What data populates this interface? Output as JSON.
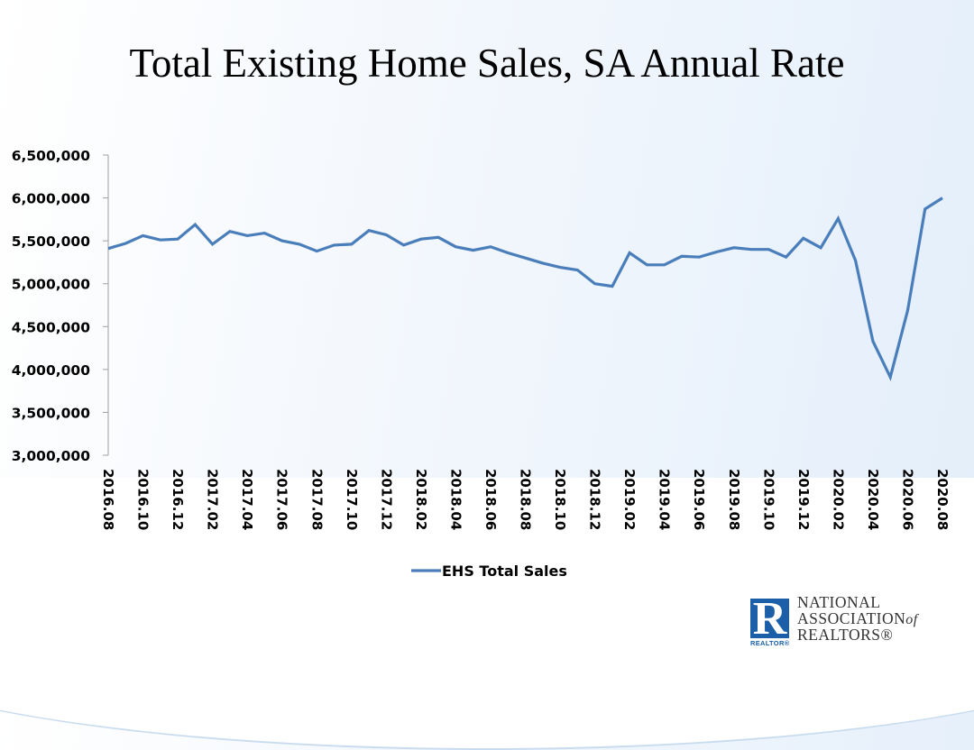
{
  "slide": {
    "title": "Total Existing Home Sales, SA Annual Rate"
  },
  "logo": {
    "mark_letter": "R",
    "mark_caption": "REALTOR®",
    "line1": "NATIONAL",
    "line2": "ASSOCIATION",
    "line2_suffix": "of",
    "line3": "REALTORS®"
  },
  "colors": {
    "series": "#4a7ebb",
    "axis": "#a0a0a0"
  },
  "chart_data": {
    "type": "line",
    "title": "Total Existing Home Sales, SA Annual Rate",
    "xlabel": "",
    "ylabel": "",
    "ylim": [
      3000000,
      6500000
    ],
    "yticks": [
      3000000,
      3500000,
      4000000,
      4500000,
      5000000,
      5500000,
      6000000,
      6500000
    ],
    "ytick_labels": [
      "3,000,000",
      "3,500,000",
      "4,000,000",
      "4,500,000",
      "5,000,000",
      "5,500,000",
      "6,000,000",
      "6,500,000"
    ],
    "x": [
      "2016.08",
      "2016.09",
      "2016.10",
      "2016.11",
      "2016.12",
      "2017.01",
      "2017.02",
      "2017.03",
      "2017.04",
      "2017.05",
      "2017.06",
      "2017.07",
      "2017.08",
      "2017.09",
      "2017.10",
      "2017.11",
      "2017.12",
      "2018.01",
      "2018.02",
      "2018.03",
      "2018.04",
      "2018.05",
      "2018.06",
      "2018.07",
      "2018.08",
      "2018.09",
      "2018.10",
      "2018.11",
      "2018.12",
      "2019.01",
      "2019.02",
      "2019.03",
      "2019.04",
      "2019.05",
      "2019.06",
      "2019.07",
      "2019.08",
      "2019.09",
      "2019.10",
      "2019.11",
      "2019.12",
      "2020.01",
      "2020.02",
      "2020.03",
      "2020.04",
      "2020.05",
      "2020.06",
      "2020.07",
      "2020.08"
    ],
    "xtick_labels": [
      "2016.08",
      "2016.10",
      "2016.12",
      "2017.02",
      "2017.04",
      "2017.06",
      "2017.08",
      "2017.10",
      "2017.12",
      "2018.02",
      "2018.04",
      "2018.06",
      "2018.08",
      "2018.10",
      "2018.12",
      "2019.02",
      "2019.04",
      "2019.06",
      "2019.08",
      "2019.10",
      "2019.12",
      "2020.02",
      "2020.04",
      "2020.06",
      "2020.08"
    ],
    "grid": false,
    "legend": "bottom",
    "series": [
      {
        "name": "EHS Total Sales",
        "values": [
          5410000,
          5470000,
          5560000,
          5510000,
          5520000,
          5690000,
          5460000,
          5610000,
          5560000,
          5590000,
          5500000,
          5460000,
          5380000,
          5450000,
          5460000,
          5620000,
          5570000,
          5450000,
          5520000,
          5540000,
          5430000,
          5390000,
          5430000,
          5360000,
          5300000,
          5240000,
          5190000,
          5160000,
          5000000,
          4970000,
          5360000,
          5220000,
          5220000,
          5320000,
          5310000,
          5370000,
          5420000,
          5400000,
          5400000,
          5310000,
          5530000,
          5420000,
          5760000,
          5270000,
          4330000,
          3910000,
          4690000,
          5870000,
          6000000
        ]
      }
    ]
  }
}
